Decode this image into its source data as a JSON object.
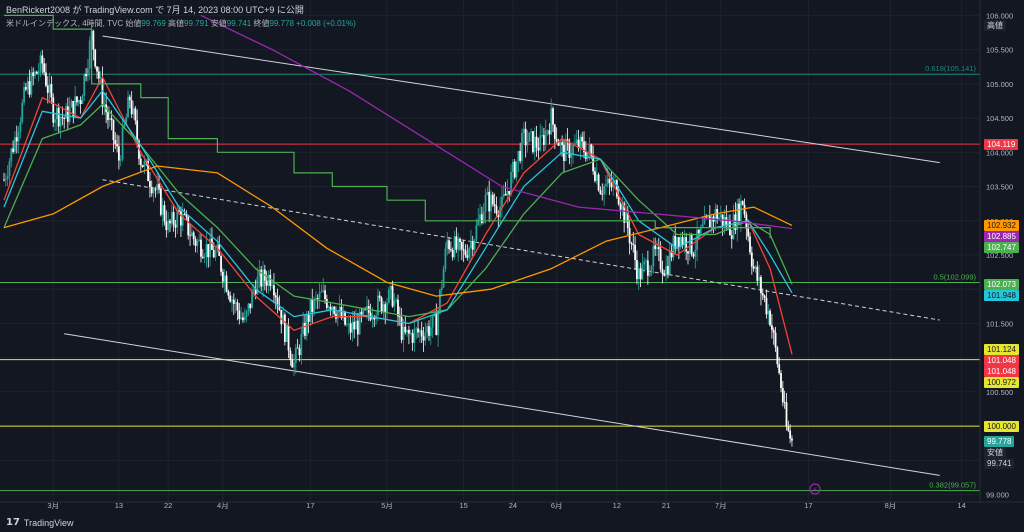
{
  "header": {
    "line1": "BenRickert2008 が TradingView.com で 7月 14, 2023 08:00 UTC+9 に公開",
    "symbol": "米ドルインデックス, 4時間, TVC",
    "open_label": "始値",
    "open": "99.769",
    "high_label": "高値",
    "high": "99.791",
    "low_label": "安値",
    "low": "99.741",
    "close_label": "終値",
    "close": "99.778",
    "change": "+0.008 (+0.01%)"
  },
  "footer": {
    "logo": "TradingView"
  },
  "colors": {
    "background": "#131722",
    "up": "#26a69a",
    "down": "#ffffff",
    "ema_fast": "#f44336",
    "ema_mid": "#4caf50",
    "ema_slow": "#ff9800",
    "ema_long": "#9c27b0",
    "cyan": "#26c6da",
    "step": "#4caf50"
  },
  "chart_data": {
    "type": "candlestick",
    "x_ticks": [
      "3月",
      "13",
      "22",
      "4月",
      "17",
      "5月",
      "15",
      "24",
      "6月",
      "12",
      "21",
      "7月",
      "17",
      "8月",
      "14"
    ],
    "y_ticks": [
      99.0,
      99.5,
      100.0,
      100.5,
      101.0,
      101.5,
      102.0,
      102.5,
      103.0,
      103.5,
      104.0,
      104.5,
      105.0,
      105.5,
      106.0
    ],
    "y_tick_labels": [
      "99.000",
      "99.500",
      "100.000",
      "100.500",
      "101.000",
      "101.500",
      "102.000",
      "102.500",
      "103.000",
      "103.500",
      "104.000",
      "104.500",
      "105.000",
      "105.500",
      "106.000"
    ],
    "ylim": [
      98.95,
      106.05
    ],
    "x_range": [
      "2023-02-20",
      "2023-08-17"
    ],
    "close_path": [
      [
        "2023-02-20",
        103.6
      ],
      [
        "2023-02-22",
        104.2
      ],
      [
        "2023-02-24",
        104.9
      ],
      [
        "2023-02-27",
        105.3
      ],
      [
        "2023-03-01",
        104.6
      ],
      [
        "2023-03-03",
        104.5
      ],
      [
        "2023-03-06",
        104.8
      ],
      [
        "2023-03-08",
        105.7
      ],
      [
        "2023-03-10",
        104.8
      ],
      [
        "2023-03-13",
        103.9
      ],
      [
        "2023-03-15",
        104.8
      ],
      [
        "2023-03-17",
        103.9
      ],
      [
        "2023-03-20",
        103.4
      ],
      [
        "2023-03-22",
        102.9
      ],
      [
        "2023-03-24",
        103.1
      ],
      [
        "2023-03-27",
        102.7
      ],
      [
        "2023-03-29",
        102.6
      ],
      [
        "2023-03-31",
        102.5
      ],
      [
        "2023-04-03",
        101.8
      ],
      [
        "2023-04-05",
        101.5
      ],
      [
        "2023-04-07",
        102.1
      ],
      [
        "2023-04-10",
        102.2
      ],
      [
        "2023-04-12",
        101.5
      ],
      [
        "2023-04-14",
        100.9
      ],
      [
        "2023-04-17",
        101.7
      ],
      [
        "2023-04-19",
        101.9
      ],
      [
        "2023-04-21",
        101.8
      ],
      [
        "2023-04-24",
        101.4
      ],
      [
        "2023-04-26",
        101.5
      ],
      [
        "2023-04-28",
        101.7
      ],
      [
        "2023-05-02",
        101.9
      ],
      [
        "2023-05-04",
        101.3
      ],
      [
        "2023-05-08",
        101.4
      ],
      [
        "2023-05-10",
        101.5
      ],
      [
        "2023-05-12",
        102.7
      ],
      [
        "2023-05-15",
        102.5
      ],
      [
        "2023-05-17",
        102.8
      ],
      [
        "2023-05-19",
        103.3
      ],
      [
        "2023-05-22",
        103.2
      ],
      [
        "2023-05-24",
        103.7
      ],
      [
        "2023-05-26",
        104.2
      ],
      [
        "2023-05-29",
        104.1
      ],
      [
        "2023-05-31",
        104.5
      ],
      [
        "2023-06-02",
        104.0
      ],
      [
        "2023-06-05",
        104.1
      ],
      [
        "2023-06-07",
        104.0
      ],
      [
        "2023-06-09",
        103.5
      ],
      [
        "2023-06-12",
        103.5
      ],
      [
        "2023-06-14",
        102.9
      ],
      [
        "2023-06-16",
        102.2
      ],
      [
        "2023-06-19",
        102.5
      ],
      [
        "2023-06-21",
        102.3
      ],
      [
        "2023-06-23",
        102.8
      ],
      [
        "2023-06-26",
        102.6
      ],
      [
        "2023-06-28",
        102.9
      ],
      [
        "2023-06-30",
        103.1
      ],
      [
        "2023-07-03",
        102.9
      ],
      [
        "2023-07-05",
        103.3
      ],
      [
        "2023-07-07",
        102.3
      ],
      [
        "2023-07-10",
        101.6
      ],
      [
        "2023-07-12",
        100.6
      ],
      [
        "2023-07-13",
        99.96
      ],
      [
        "2023-07-14",
        99.778
      ]
    ],
    "series": [
      {
        "name": "ema_fast",
        "color": "#f44336",
        "values": [
          [
            "2023-02-20",
            103.3
          ],
          [
            "2023-02-27",
            104.8
          ],
          [
            "2023-03-06",
            104.5
          ],
          [
            "2023-03-10",
            105.1
          ],
          [
            "2023-03-17",
            104.0
          ],
          [
            "2023-03-24",
            103.1
          ],
          [
            "2023-03-31",
            102.6
          ],
          [
            "2023-04-07",
            101.9
          ],
          [
            "2023-04-14",
            101.4
          ],
          [
            "2023-04-21",
            101.6
          ],
          [
            "2023-04-28",
            101.6
          ],
          [
            "2023-05-05",
            101.5
          ],
          [
            "2023-05-12",
            101.8
          ],
          [
            "2023-05-19",
            102.8
          ],
          [
            "2023-05-26",
            103.7
          ],
          [
            "2023-06-02",
            104.2
          ],
          [
            "2023-06-09",
            103.9
          ],
          [
            "2023-06-16",
            102.8
          ],
          [
            "2023-06-23",
            102.5
          ],
          [
            "2023-06-30",
            102.9
          ],
          [
            "2023-07-06",
            103.0
          ],
          [
            "2023-07-10",
            102.3
          ],
          [
            "2023-07-14",
            101.048
          ]
        ]
      },
      {
        "name": "ema_mid",
        "color": "#4caf50",
        "values": [
          [
            "2023-02-20",
            102.9
          ],
          [
            "2023-02-27",
            104.2
          ],
          [
            "2023-03-06",
            104.4
          ],
          [
            "2023-03-10",
            104.7
          ],
          [
            "2023-03-17",
            104.1
          ],
          [
            "2023-03-24",
            103.4
          ],
          [
            "2023-03-31",
            102.9
          ],
          [
            "2023-04-07",
            102.3
          ],
          [
            "2023-04-14",
            101.9
          ],
          [
            "2023-04-21",
            101.8
          ],
          [
            "2023-04-28",
            101.7
          ],
          [
            "2023-05-05",
            101.6
          ],
          [
            "2023-05-12",
            101.7
          ],
          [
            "2023-05-19",
            102.3
          ],
          [
            "2023-05-26",
            103.1
          ],
          [
            "2023-06-02",
            103.7
          ],
          [
            "2023-06-09",
            103.9
          ],
          [
            "2023-06-16",
            103.3
          ],
          [
            "2023-06-23",
            102.8
          ],
          [
            "2023-06-30",
            102.8
          ],
          [
            "2023-07-06",
            103.0
          ],
          [
            "2023-07-10",
            102.8
          ],
          [
            "2023-07-14",
            102.073
          ]
        ]
      },
      {
        "name": "cyan",
        "color": "#26c6da",
        "values": [
          [
            "2023-02-20",
            103.2
          ],
          [
            "2023-02-27",
            104.6
          ],
          [
            "2023-03-06",
            104.5
          ],
          [
            "2023-03-10",
            104.9
          ],
          [
            "2023-03-17",
            104.1
          ],
          [
            "2023-03-24",
            103.2
          ],
          [
            "2023-03-31",
            102.7
          ],
          [
            "2023-04-07",
            102.0
          ],
          [
            "2023-04-14",
            101.6
          ],
          [
            "2023-04-21",
            101.7
          ],
          [
            "2023-04-28",
            101.6
          ],
          [
            "2023-05-05",
            101.5
          ],
          [
            "2023-05-12",
            101.7
          ],
          [
            "2023-05-19",
            102.6
          ],
          [
            "2023-05-26",
            103.5
          ],
          [
            "2023-06-02",
            104.0
          ],
          [
            "2023-06-09",
            103.9
          ],
          [
            "2023-06-16",
            103.0
          ],
          [
            "2023-06-23",
            102.6
          ],
          [
            "2023-06-30",
            102.9
          ],
          [
            "2023-07-06",
            103.0
          ],
          [
            "2023-07-10",
            102.5
          ],
          [
            "2023-07-14",
            101.948
          ]
        ]
      },
      {
        "name": "ema_slow",
        "color": "#ff9800",
        "values": [
          [
            "2023-02-20",
            102.9
          ],
          [
            "2023-03-01",
            103.1
          ],
          [
            "2023-03-10",
            103.5
          ],
          [
            "2023-03-20",
            103.8
          ],
          [
            "2023-03-31",
            103.7
          ],
          [
            "2023-04-10",
            103.2
          ],
          [
            "2023-04-20",
            102.6
          ],
          [
            "2023-05-01",
            102.1
          ],
          [
            "2023-05-10",
            101.9
          ],
          [
            "2023-05-20",
            102.0
          ],
          [
            "2023-05-31",
            102.3
          ],
          [
            "2023-06-10",
            102.7
          ],
          [
            "2023-06-20",
            102.9
          ],
          [
            "2023-06-30",
            103.1
          ],
          [
            "2023-07-07",
            103.2
          ],
          [
            "2023-07-14",
            102.932
          ]
        ]
      },
      {
        "name": "ema_long",
        "color": "#9c27b0",
        "values": [
          [
            "2023-03-28",
            106.0
          ],
          [
            "2023-04-10",
            105.5
          ],
          [
            "2023-04-24",
            104.9
          ],
          [
            "2023-05-08",
            104.2
          ],
          [
            "2023-05-22",
            103.5
          ],
          [
            "2023-06-05",
            103.2
          ],
          [
            "2023-06-19",
            103.1
          ],
          [
            "2023-07-03",
            103.0
          ],
          [
            "2023-07-14",
            102.885
          ]
        ]
      },
      {
        "name": "step",
        "color": "#4caf50",
        "values": [
          [
            "2023-02-20",
            106.0
          ],
          [
            "2023-03-01",
            106.0
          ],
          [
            "2023-03-01",
            105.8
          ],
          [
            "2023-03-08",
            105.8
          ],
          [
            "2023-03-08",
            105.0
          ],
          [
            "2023-03-17",
            105.0
          ],
          [
            "2023-03-17",
            104.8
          ],
          [
            "2023-03-22",
            104.8
          ],
          [
            "2023-03-22",
            104.2
          ],
          [
            "2023-03-31",
            104.2
          ],
          [
            "2023-03-31",
            104.0
          ],
          [
            "2023-04-14",
            104.0
          ],
          [
            "2023-04-14",
            103.7
          ],
          [
            "2023-04-21",
            103.7
          ],
          [
            "2023-04-21",
            103.5
          ],
          [
            "2023-05-01",
            103.5
          ],
          [
            "2023-05-01",
            103.3
          ],
          [
            "2023-05-08",
            103.3
          ],
          [
            "2023-05-08",
            103.0
          ],
          [
            "2023-06-19",
            103.0
          ],
          [
            "2023-06-19",
            102.9
          ],
          [
            "2023-07-10",
            102.9
          ],
          [
            "2023-07-10",
            102.747
          ]
        ]
      }
    ],
    "trendlines": [
      {
        "from": [
          "2023-03-10",
          105.7
        ],
        "to": [
          "2023-08-10",
          103.85
        ],
        "style": "solid",
        "color": "#d1d4dc"
      },
      {
        "from": [
          "2023-03-10",
          103.6
        ],
        "to": [
          "2023-08-10",
          101.55
        ],
        "style": "dashed",
        "color": "#d1d4dc"
      },
      {
        "from": [
          "2023-03-03",
          101.35
        ],
        "to": [
          "2023-08-10",
          99.28
        ],
        "style": "solid",
        "color": "#d1d4dc"
      }
    ],
    "horizontal_lines": [
      {
        "y": 105.141,
        "color": "#1e8a7a",
        "label": "0.618(105.141)"
      },
      {
        "y": 104.119,
        "color": "#f23645",
        "price_tag": "104.119"
      },
      {
        "y": 102.099,
        "color": "#4caf50",
        "label": "0.5(102.099)"
      },
      {
        "y": 100.972,
        "color": "#e6e62e",
        "price_tag": "100.972"
      },
      {
        "y": 100.0,
        "color": "#e6e62e",
        "price_tag": "100.000"
      },
      {
        "y": 99.057,
        "color": "#4caf50",
        "label": "0.382(99.057)"
      }
    ],
    "price_tags": [
      {
        "text": "高値",
        "y": 105.86,
        "bg": "#1e222d",
        "fg": "#d1d4dc"
      },
      {
        "text": "104.119",
        "y": 104.119,
        "bg": "#f23645",
        "fg": "#ffffff"
      },
      {
        "text": "102.932",
        "y": 102.932,
        "bg": "#ff9800",
        "fg": "#131722"
      },
      {
        "text": "102.885",
        "y": 102.885,
        "bg": "#9c27b0",
        "fg": "#ffffff"
      },
      {
        "text": "102.747",
        "y": 102.747,
        "bg": "#4caf50",
        "fg": "#ffffff"
      },
      {
        "text": "102.073",
        "y": 102.073,
        "bg": "#4caf50",
        "fg": "#ffffff"
      },
      {
        "text": "101.948",
        "y": 101.948,
        "bg": "#26c6da",
        "fg": "#131722"
      },
      {
        "text": "101.124",
        "y": 101.124,
        "bg": "#e6e62e",
        "fg": "#131722"
      },
      {
        "text": "101.048",
        "y": 101.048,
        "bg": "#f23645",
        "fg": "#ffffff"
      },
      {
        "text": "101.048",
        "y": 101.048,
        "bg": "#f23645",
        "fg": "#ffffff"
      },
      {
        "text": "100.972",
        "y": 100.972,
        "bg": "#e6e62e",
        "fg": "#131722"
      },
      {
        "text": "100.000",
        "y": 100.0,
        "bg": "#e6e62e",
        "fg": "#131722"
      },
      {
        "text": "99.778",
        "y": 99.778,
        "bg": "#26a69a",
        "fg": "#ffffff"
      },
      {
        "text": "安値",
        "y": 99.741,
        "bg": "#1e222d",
        "fg": "#d1d4dc"
      },
      {
        "text": "99.741",
        "y": 99.741,
        "bg": "#1e222d",
        "fg": "#d1d4dc"
      }
    ]
  }
}
